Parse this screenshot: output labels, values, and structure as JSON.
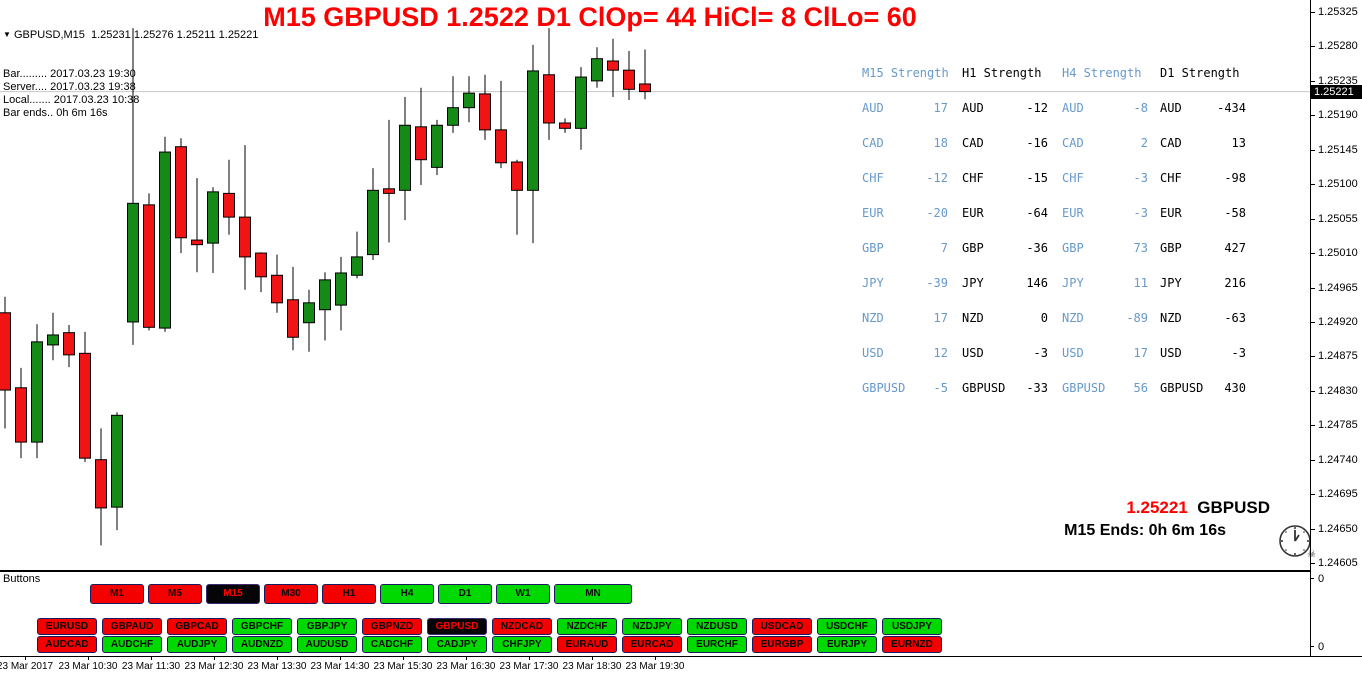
{
  "title": "M15 GBPUSD 1.2522  D1 ClOp= 44 HiCl= 8 ClLo= 60",
  "info_panel": {
    "symbol_line": "GBPUSD,M15  1.25231 1.25276 1.25211 1.25221",
    "dropdown_icon": "▼",
    "lines": [
      "Bar......... 2017.03.23 19:30",
      "Server.... 2017.03.23 19:38",
      "Local....... 2017.03.23 10:38",
      "Bar ends.. 0h 6m 16s"
    ]
  },
  "strength_table": {
    "headers": [
      {
        "label": "M15 Strength",
        "color": "#6699cc"
      },
      {
        "label": "H1 Strength",
        "color": "#000000"
      },
      {
        "label": "H4 Strength",
        "color": "#6699cc"
      },
      {
        "label": "D1 Strength",
        "color": "#000000"
      }
    ],
    "rows": [
      {
        "currency": "AUD",
        "values": [
          "17",
          "-12",
          "-8",
          "-434"
        ]
      },
      {
        "currency": "CAD",
        "values": [
          "18",
          "-16",
          "2",
          "13"
        ]
      },
      {
        "currency": "CHF",
        "values": [
          "-12",
          "-15",
          "-3",
          "-98"
        ]
      },
      {
        "currency": "EUR",
        "values": [
          "-20",
          "-64",
          "-3",
          "-58"
        ]
      },
      {
        "currency": "GBP",
        "values": [
          "7",
          "-36",
          "73",
          "427"
        ]
      },
      {
        "currency": "JPY",
        "values": [
          "-39",
          "146",
          "11",
          "216"
        ]
      },
      {
        "currency": "NZD",
        "values": [
          "17",
          "0",
          "-89",
          "-63"
        ]
      },
      {
        "currency": "USD",
        "values": [
          "12",
          "-3",
          "17",
          "-3"
        ]
      },
      {
        "currency": "GBPUSD",
        "values": [
          "-5",
          "-33",
          "56",
          "430"
        ]
      }
    ]
  },
  "quote_overlay": {
    "price": "1.25221",
    "symbol": "GBPUSD",
    "countdown": "M15 Ends: 0h 6m 16s"
  },
  "buttons_panel": {
    "label": "Buttons",
    "timeframes": [
      {
        "label": "M1",
        "state": "red"
      },
      {
        "label": "M5",
        "state": "red"
      },
      {
        "label": "M15",
        "state": "selected"
      },
      {
        "label": "M30",
        "state": "red"
      },
      {
        "label": "H1",
        "state": "red"
      },
      {
        "label": "H4",
        "state": "green"
      },
      {
        "label": "D1",
        "state": "green"
      },
      {
        "label": "W1",
        "state": "green"
      },
      {
        "label": "MN",
        "state": "green"
      }
    ],
    "pairs_row1": [
      {
        "label": "EURUSD",
        "state": "red"
      },
      {
        "label": "GBPAUD",
        "state": "red"
      },
      {
        "label": "GBPCAD",
        "state": "red"
      },
      {
        "label": "GBPCHF",
        "state": "green"
      },
      {
        "label": "GBPJPY",
        "state": "green"
      },
      {
        "label": "GBPNZD",
        "state": "red"
      },
      {
        "label": "GBPUSD",
        "state": "selected"
      },
      {
        "label": "NZDCAD",
        "state": "red"
      },
      {
        "label": "NZDCHF",
        "state": "green"
      },
      {
        "label": "NZDJPY",
        "state": "green"
      },
      {
        "label": "NZDUSD",
        "state": "green"
      },
      {
        "label": "USDCAD",
        "state": "red"
      },
      {
        "label": "USDCHF",
        "state": "green"
      },
      {
        "label": "USDJPY",
        "state": "green"
      }
    ],
    "pairs_row2": [
      {
        "label": "AUDCAD",
        "state": "red"
      },
      {
        "label": "AUDCHF",
        "state": "green"
      },
      {
        "label": "AUDJPY",
        "state": "green"
      },
      {
        "label": "AUDNZD",
        "state": "green"
      },
      {
        "label": "AUDUSD",
        "state": "green"
      },
      {
        "label": "CADCHF",
        "state": "green"
      },
      {
        "label": "CADJPY",
        "state": "green"
      },
      {
        "label": "CHFJPY",
        "state": "green"
      },
      {
        "label": "EURAUD",
        "state": "red"
      },
      {
        "label": "EURCAD",
        "state": "red"
      },
      {
        "label": "EURCHF",
        "state": "green"
      },
      {
        "label": "EURGBP",
        "state": "red"
      },
      {
        "label": "EURJPY",
        "state": "green"
      },
      {
        "label": "EURNZD",
        "state": "red"
      }
    ],
    "scale_top": "0",
    "scale_bottom": "0"
  },
  "colors": {
    "candle_up": "#168a16",
    "candle_down": "#f01414",
    "candle_outline": "#000000",
    "current_price_line": "#c6c6c6",
    "title_red": "#ff0000",
    "table_blue": "#6699cc",
    "button_red": "#f40000",
    "button_green": "#00d900",
    "selected_bg": "#050508",
    "selected_text": "#ff0000"
  },
  "chart_data": {
    "type": "candlestick",
    "symbol": "GBPUSD",
    "timeframe": "M15",
    "title": "M15 GBPUSD 1.2522  D1 ClOp= 44 HiCl= 8 ClLo= 60",
    "current_price": 1.25221,
    "y_axis": {
      "min": 1.24605,
      "max": 1.25325,
      "ticks": [
        "1.25325",
        "1.25280",
        "1.25235",
        "1.25190",
        "1.25145",
        "1.25100",
        "1.25055",
        "1.25010",
        "1.24965",
        "1.24920",
        "1.24875",
        "1.24830",
        "1.24785",
        "1.24740",
        "1.24695",
        "1.24650",
        "1.24605"
      ]
    },
    "x_labels": [
      "23 Mar 2017",
      "23 Mar 10:30",
      "23 Mar 11:30",
      "23 Mar 12:30",
      "23 Mar 13:30",
      "23 Mar 14:30",
      "23 Mar 15:30",
      "23 Mar 16:30",
      "23 Mar 17:30",
      "23 Mar 18:30",
      "23 Mar 19:30"
    ],
    "candles": [
      {
        "o": 1.24932,
        "h": 1.24953,
        "l": 1.24781,
        "c": 1.24831
      },
      {
        "o": 1.24834,
        "h": 1.2486,
        "l": 1.24742,
        "c": 1.24763
      },
      {
        "o": 1.24763,
        "h": 1.24917,
        "l": 1.24742,
        "c": 1.24894
      },
      {
        "o": 1.2489,
        "h": 1.24932,
        "l": 1.2487,
        "c": 1.24903
      },
      {
        "o": 1.24906,
        "h": 1.24916,
        "l": 1.24861,
        "c": 1.24877
      },
      {
        "o": 1.24879,
        "h": 1.24907,
        "l": 1.24737,
        "c": 1.24742
      },
      {
        "o": 1.2474,
        "h": 1.24781,
        "l": 1.24628,
        "c": 1.24677
      },
      {
        "o": 1.24678,
        "h": 1.24802,
        "l": 1.24648,
        "c": 1.24798
      },
      {
        "o": 1.2492,
        "h": 1.25304,
        "l": 1.2489,
        "c": 1.25075
      },
      {
        "o": 1.25073,
        "h": 1.25088,
        "l": 1.24909,
        "c": 1.24913
      },
      {
        "o": 1.24912,
        "h": 1.25162,
        "l": 1.24907,
        "c": 1.25142
      },
      {
        "o": 1.25149,
        "h": 1.2516,
        "l": 1.2501,
        "c": 1.2503
      },
      {
        "o": 1.25027,
        "h": 1.25108,
        "l": 1.24985,
        "c": 1.25021
      },
      {
        "o": 1.25023,
        "h": 1.25096,
        "l": 1.24984,
        "c": 1.2509
      },
      {
        "o": 1.25088,
        "h": 1.25132,
        "l": 1.25034,
        "c": 1.25057
      },
      {
        "o": 1.25057,
        "h": 1.25151,
        "l": 1.24962,
        "c": 1.25005
      },
      {
        "o": 1.2501,
        "h": 1.25011,
        "l": 1.24959,
        "c": 1.24979
      },
      {
        "o": 1.24981,
        "h": 1.25008,
        "l": 1.24932,
        "c": 1.24945
      },
      {
        "o": 1.24949,
        "h": 1.24992,
        "l": 1.24883,
        "c": 1.249
      },
      {
        "o": 1.24919,
        "h": 1.24962,
        "l": 1.24881,
        "c": 1.24945
      },
      {
        "o": 1.24936,
        "h": 1.24985,
        "l": 1.24896,
        "c": 1.24975
      },
      {
        "o": 1.24942,
        "h": 1.25005,
        "l": 1.24909,
        "c": 1.24984
      },
      {
        "o": 1.24981,
        "h": 1.25038,
        "l": 1.24977,
        "c": 1.25005
      },
      {
        "o": 1.25008,
        "h": 1.25121,
        "l": 1.25001,
        "c": 1.25092
      },
      {
        "o": 1.25094,
        "h": 1.25184,
        "l": 1.25024,
        "c": 1.25088
      },
      {
        "o": 1.25092,
        "h": 1.25214,
        "l": 1.25053,
        "c": 1.25177
      },
      {
        "o": 1.25175,
        "h": 1.25226,
        "l": 1.25099,
        "c": 1.25132
      },
      {
        "o": 1.25122,
        "h": 1.25184,
        "l": 1.25112,
        "c": 1.25177
      },
      {
        "o": 1.25177,
        "h": 1.25241,
        "l": 1.25167,
        "c": 1.252
      },
      {
        "o": 1.252,
        "h": 1.25241,
        "l": 1.25181,
        "c": 1.25219
      },
      {
        "o": 1.25218,
        "h": 1.25243,
        "l": 1.25158,
        "c": 1.25171
      },
      {
        "o": 1.25171,
        "h": 1.25235,
        "l": 1.25121,
        "c": 1.25128
      },
      {
        "o": 1.25129,
        "h": 1.25132,
        "l": 1.25034,
        "c": 1.25092
      },
      {
        "o": 1.25092,
        "h": 1.25282,
        "l": 1.25023,
        "c": 1.25248
      },
      {
        "o": 1.25243,
        "h": 1.25304,
        "l": 1.25158,
        "c": 1.2518
      },
      {
        "o": 1.2518,
        "h": 1.25186,
        "l": 1.25167,
        "c": 1.25173
      },
      {
        "o": 1.25173,
        "h": 1.25253,
        "l": 1.25145,
        "c": 1.2524
      },
      {
        "o": 1.25235,
        "h": 1.25279,
        "l": 1.25226,
        "c": 1.25264
      },
      {
        "o": 1.25261,
        "h": 1.2529,
        "l": 1.25214,
        "c": 1.25249
      },
      {
        "o": 1.25249,
        "h": 1.25274,
        "l": 1.2521,
        "c": 1.25224
      },
      {
        "o": 1.25231,
        "h": 1.25276,
        "l": 1.25211,
        "c": 1.25221
      }
    ]
  }
}
